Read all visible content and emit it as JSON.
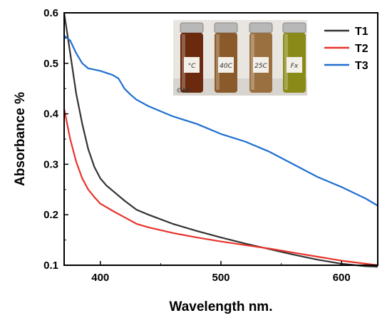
{
  "chart_data": {
    "type": "line",
    "title": "",
    "xlabel": "Wavelength nm.",
    "ylabel": "Absorbance  %",
    "xlim": [
      370,
      630
    ],
    "ylim": [
      0.1,
      0.6
    ],
    "xticks": [
      400,
      500,
      600
    ],
    "yticks": [
      0.1,
      0.2,
      0.3,
      0.4,
      0.5,
      0.6
    ],
    "grid": false,
    "legend": "top-right",
    "series": [
      {
        "name": "T1",
        "color": "#333333",
        "x": [
          370,
          375,
          380,
          385,
          390,
          395,
          400,
          405,
          410,
          420,
          430,
          440,
          460,
          480,
          500,
          520,
          540,
          560,
          580,
          600,
          620,
          630
        ],
        "y": [
          0.6,
          0.52,
          0.44,
          0.38,
          0.33,
          0.295,
          0.272,
          0.258,
          0.248,
          0.228,
          0.21,
          0.2,
          0.182,
          0.168,
          0.155,
          0.143,
          0.132,
          0.121,
          0.111,
          0.103,
          0.098,
          0.097
        ]
      },
      {
        "name": "T2",
        "color": "#e8342c",
        "x": [
          370,
          375,
          380,
          385,
          390,
          395,
          400,
          410,
          420,
          430,
          440,
          460,
          480,
          500,
          520,
          540,
          560,
          580,
          600,
          620,
          630
        ],
        "y": [
          0.41,
          0.35,
          0.305,
          0.272,
          0.25,
          0.235,
          0.222,
          0.208,
          0.195,
          0.182,
          0.175,
          0.164,
          0.155,
          0.147,
          0.14,
          0.133,
          0.125,
          0.117,
          0.109,
          0.103,
          0.1
        ]
      },
      {
        "name": "T3",
        "color": "#1f6fd1",
        "x": [
          370,
          375,
          380,
          385,
          390,
          400,
          410,
          415,
          420,
          425,
          430,
          440,
          460,
          480,
          500,
          520,
          540,
          560,
          580,
          600,
          620,
          630
        ],
        "y": [
          0.555,
          0.545,
          0.52,
          0.5,
          0.49,
          0.485,
          0.477,
          0.47,
          0.45,
          0.438,
          0.428,
          0.415,
          0.395,
          0.38,
          0.36,
          0.345,
          0.325,
          0.3,
          0.275,
          0.255,
          0.232,
          0.218
        ]
      }
    ],
    "inset_photo": {
      "vial_labels": [
        "°C",
        "40C",
        "25C",
        "Fx"
      ],
      "corner_text": "©NF",
      "vial_colors": [
        "#6b2a0e",
        "#8a5a2a",
        "#9a7040",
        "#8a8a18"
      ]
    }
  }
}
